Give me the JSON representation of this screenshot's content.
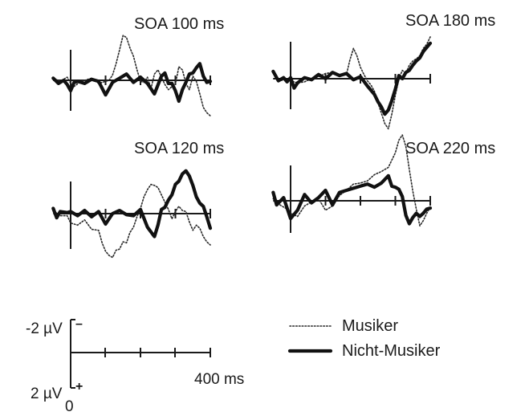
{
  "chart_data": {
    "type": "line",
    "unit_note": "ERP difference waves; negative voltage plotted upward",
    "panels": [
      {
        "title": "SOA 100 ms",
        "x_range_ms": [
          -50,
          400
        ],
        "y_range_uV": [
          -4.5,
          3.5
        ],
        "series": [
          {
            "name": "Musiker",
            "x": [
              -50,
              -30,
              -10,
              0,
              10,
              25,
              40,
              60,
              80,
              100,
              110,
              120,
              130,
              140,
              150,
              160,
              170,
              180,
              190,
              200,
              210,
              220,
              230,
              240,
              250,
              260,
              270,
              280,
              290,
              300,
              310,
              320,
              330,
              340,
              350,
              360,
              370,
              380,
              390,
              400
            ],
            "y": [
              -0.2,
              0.1,
              -0.3,
              0.3,
              0.6,
              0.2,
              0.0,
              -0.2,
              0.3,
              0.1,
              0.0,
              -0.5,
              -1.6,
              -2.9,
              -4.3,
              -4.1,
              -3.1,
              -2.3,
              -1.0,
              0.1,
              0.2,
              -0.3,
              0.8,
              -0.6,
              -1.0,
              -0.3,
              0.4,
              0.9,
              0.6,
              0.4,
              -1.3,
              -1.0,
              0.3,
              0.9,
              -0.4,
              0.1,
              1.3,
              2.6,
              3.1,
              3.4
            ]
          },
          {
            "name": "Nicht-Musiker",
            "x": [
              -50,
              -35,
              -20,
              -10,
              0,
              10,
              20,
              40,
              60,
              80,
              100,
              120,
              140,
              160,
              180,
              200,
              220,
              240,
              260,
              270,
              280,
              290,
              300,
              310,
              320,
              330,
              340,
              350,
              360,
              370,
              380,
              390,
              400
            ],
            "y": [
              -0.2,
              0.3,
              0.0,
              0.4,
              1.0,
              0.2,
              0.1,
              0.3,
              -0.1,
              0.1,
              1.4,
              0.2,
              -0.2,
              -0.6,
              0.2,
              -0.3,
              0.3,
              1.3,
              -0.4,
              -0.7,
              0.3,
              0.3,
              1.0,
              2.0,
              0.9,
              0.2,
              -0.6,
              -0.7,
              -1.2,
              -1.6,
              -0.4,
              0.2,
              0.1
            ]
          }
        ]
      },
      {
        "title": "SOA 180 ms",
        "x_range_ms": [
          -50,
          400
        ],
        "y_range_uV": [
          -4.5,
          5.0
        ],
        "series": [
          {
            "name": "Musiker",
            "x": [
              -50,
              -30,
              -10,
              0,
              20,
              40,
              60,
              80,
              100,
              120,
              140,
              160,
              170,
              180,
              190,
              200,
              210,
              220,
              230,
              240,
              250,
              260,
              270,
              280,
              290,
              300,
              310,
              320,
              330,
              340,
              350,
              360,
              370,
              380,
              390,
              400
            ],
            "y": [
              -0.6,
              0.2,
              0.0,
              0.2,
              0.4,
              0.3,
              0.0,
              -0.2,
              -0.5,
              -0.6,
              -0.3,
              -0.4,
              -1.8,
              -2.9,
              -2.2,
              -1.1,
              -0.4,
              0.2,
              0.6,
              1.2,
              2.3,
              3.3,
              4.3,
              4.8,
              3.4,
              1.6,
              0.0,
              -0.8,
              -0.5,
              -1.3,
              -1.7,
              -1.9,
              -2.2,
              -2.9,
              -3.3,
              -4.0
            ]
          },
          {
            "name": "Nicht-Musiker",
            "x": [
              -50,
              -35,
              -20,
              -10,
              0,
              10,
              20,
              40,
              60,
              80,
              100,
              120,
              140,
              160,
              180,
              200,
              220,
              240,
              250,
              260,
              270,
              280,
              290,
              300,
              310,
              320,
              330,
              340,
              350,
              360,
              370,
              380,
              390,
              400
            ],
            "y": [
              -0.7,
              0.2,
              -0.1,
              0.3,
              -0.1,
              0.9,
              0.4,
              -0.1,
              0.1,
              -0.4,
              0.0,
              -0.6,
              -0.3,
              -0.5,
              0.1,
              -0.2,
              0.7,
              1.5,
              2.2,
              2.7,
              3.4,
              3.0,
              2.1,
              1.0,
              -0.3,
              0.0,
              -0.6,
              -0.8,
              -1.3,
              -1.7,
              -2.0,
              -2.6,
              -3.0,
              -3.4
            ]
          }
        ]
      },
      {
        "title": "SOA 120 ms",
        "x_range_ms": [
          -50,
          400
        ],
        "y_range_uV": [
          -4.5,
          4.5
        ],
        "series": [
          {
            "name": "Musiker",
            "x": [
              -50,
              -30,
              -10,
              0,
              20,
              40,
              60,
              80,
              90,
              100,
              110,
              120,
              130,
              140,
              150,
              160,
              170,
              180,
              190,
              200,
              210,
              220,
              230,
              240,
              250,
              260,
              270,
              280,
              290,
              300,
              310,
              320,
              330,
              340,
              350,
              360,
              370,
              380,
              390,
              400
            ],
            "y": [
              -0.3,
              0.2,
              0.2,
              0.9,
              1.1,
              0.6,
              1.5,
              1.6,
              2.8,
              3.6,
              4.0,
              4.2,
              3.5,
              3.4,
              2.7,
              2.8,
              1.8,
              1.3,
              0.3,
              -0.5,
              -1.6,
              -2.3,
              -2.8,
              -2.7,
              -2.5,
              -1.8,
              -1.1,
              -0.4,
              0.5,
              -0.2,
              -0.7,
              -0.3,
              -0.2,
              0.8,
              1.6,
              1.1,
              1.4,
              2.2,
              2.7,
              3.0
            ]
          },
          {
            "name": "Nicht-Musiker",
            "x": [
              -50,
              -40,
              -30,
              -10,
              0,
              20,
              40,
              60,
              80,
              100,
              120,
              140,
              160,
              180,
              200,
              220,
              240,
              250,
              260,
              270,
              280,
              290,
              300,
              310,
              320,
              330,
              340,
              350,
              360,
              370,
              380,
              390,
              400
            ],
            "y": [
              -0.5,
              0.4,
              -0.2,
              -0.1,
              -0.2,
              0.2,
              -0.3,
              0.3,
              -0.2,
              1.0,
              0.0,
              -0.3,
              0.1,
              0.2,
              -0.4,
              1.3,
              2.2,
              1.1,
              -0.4,
              -0.6,
              -1.3,
              -1.8,
              -2.8,
              -3.1,
              -3.8,
              -4.1,
              -3.6,
              -2.7,
              -1.6,
              -1.0,
              -0.7,
              0.3,
              1.4
            ]
          }
        ]
      },
      {
        "title": "SOA 220 ms",
        "x_range_ms": [
          -50,
          400
        ],
        "y_range_uV": [
          -4.5,
          6.5
        ],
        "series": [
          {
            "name": "Musiker",
            "x": [
              -50,
              -30,
              -10,
              0,
              20,
              40,
              60,
              80,
              100,
              120,
              140,
              160,
              180,
              200,
              220,
              240,
              260,
              280,
              300,
              310,
              320,
              330,
              340,
              350,
              360,
              370,
              380,
              390,
              400
            ],
            "y": [
              -0.2,
              0.4,
              0.8,
              1.2,
              1.5,
              0.5,
              0.1,
              -0.2,
              0.9,
              0.5,
              -0.5,
              -1.0,
              -1.6,
              -1.7,
              -1.9,
              -2.5,
              -2.8,
              -3.2,
              -4.6,
              -5.8,
              -6.3,
              -5.2,
              -3.0,
              -0.9,
              0.8,
              2.4,
              1.9,
              1.2,
              0.6
            ]
          },
          {
            "name": "Nicht-Musiker",
            "x": [
              -50,
              -40,
              -20,
              0,
              20,
              40,
              60,
              80,
              100,
              120,
              140,
              160,
              180,
              200,
              220,
              240,
              260,
              280,
              290,
              300,
              310,
              320,
              330,
              340,
              350,
              360,
              370,
              380,
              390,
              400
            ],
            "y": [
              -0.8,
              0.4,
              -0.3,
              1.7,
              0.9,
              -0.6,
              0.2,
              -0.3,
              -1.0,
              0.4,
              -0.8,
              -1.0,
              -1.2,
              -1.4,
              -1.6,
              -1.3,
              -1.7,
              -2.4,
              -1.4,
              -1.3,
              -1.1,
              -0.4,
              1.4,
              2.2,
              1.6,
              1.2,
              1.5,
              1.2,
              0.8,
              0.7
            ]
          }
        ]
      }
    ],
    "scale_bar": {
      "top_label": "-2 µV",
      "top_sign": "–",
      "bottom_label": "2 µV",
      "bottom_sign": "+",
      "origin_label": "0",
      "end_label": "400 ms"
    },
    "legend": {
      "items": [
        {
          "name": "Musiker",
          "style": "dotted"
        },
        {
          "name": "Nicht-Musiker",
          "style": "solid-thick"
        }
      ]
    }
  }
}
